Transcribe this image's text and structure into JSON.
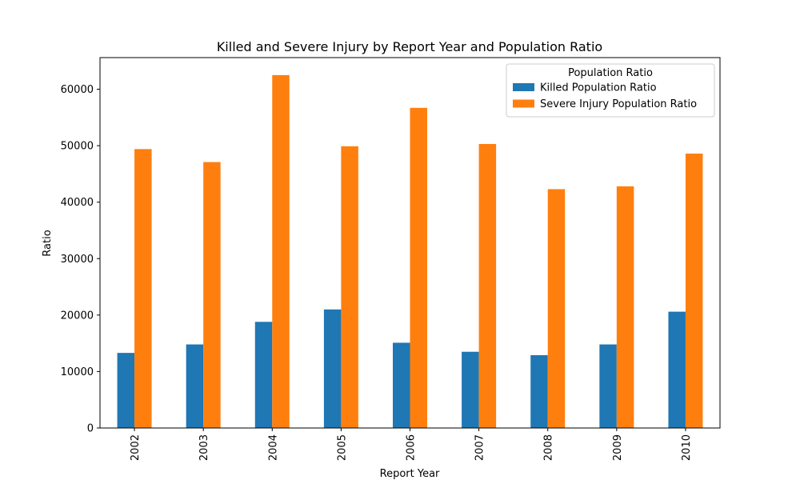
{
  "chart_data": {
    "type": "bar",
    "title": "Killed and Severe Injury by Report Year and Population Ratio",
    "xlabel": "Report Year",
    "ylabel": "Ratio",
    "categories": [
      "2002",
      "2003",
      "2004",
      "2005",
      "2006",
      "2007",
      "2008",
      "2009",
      "2010"
    ],
    "series": [
      {
        "name": "Killed Population Ratio",
        "color": "#1f77b4",
        "values": [
          13300,
          14800,
          18800,
          21000,
          15100,
          13500,
          12900,
          14800,
          20600
        ]
      },
      {
        "name": "Severe Injury Population Ratio",
        "color": "#ff7f0e",
        "values": [
          49400,
          47100,
          62500,
          49900,
          56700,
          50300,
          42300,
          42800,
          48600
        ]
      }
    ],
    "ylim": [
      0,
      65600
    ],
    "yticks": [
      0,
      10000,
      20000,
      30000,
      40000,
      50000,
      60000
    ],
    "ytick_labels": [
      "0",
      "10000",
      "20000",
      "30000",
      "40000",
      "50000",
      "60000"
    ],
    "legend": {
      "title": "Population Ratio",
      "placement": "top-right"
    },
    "grid": false
  }
}
